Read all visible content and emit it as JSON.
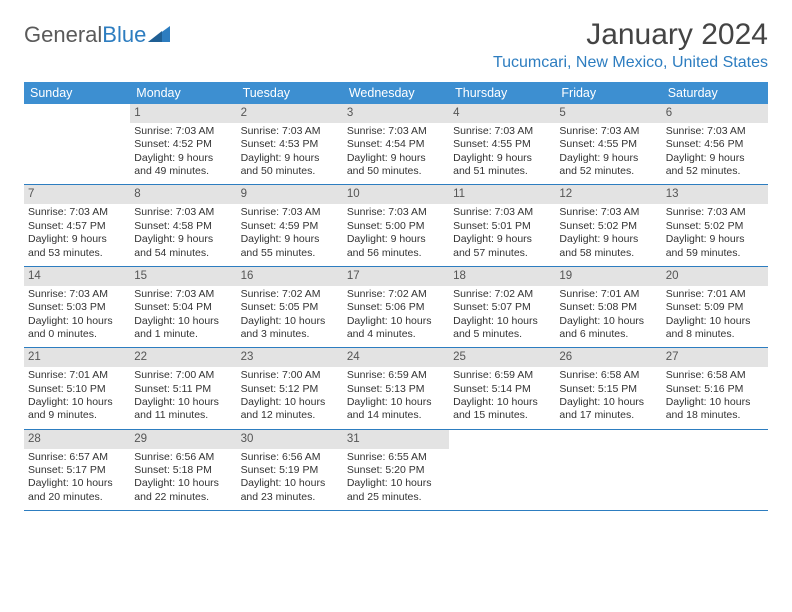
{
  "brand": {
    "part1": "General",
    "part2": "Blue"
  },
  "title": "January 2024",
  "location": "Tucumcari, New Mexico, United States",
  "colors": {
    "header_bg": "#3d8fd1",
    "header_text": "#ffffff",
    "rule": "#2d7dc0",
    "daynum_bg": "#e3e3e3",
    "body_text": "#333333",
    "accent": "#2d7dc0"
  },
  "dow": [
    "Sunday",
    "Monday",
    "Tuesday",
    "Wednesday",
    "Thursday",
    "Friday",
    "Saturday"
  ],
  "weeks": [
    [
      {
        "n": "",
        "sr": "",
        "ss": "",
        "dl": ""
      },
      {
        "n": "1",
        "sr": "Sunrise: 7:03 AM",
        "ss": "Sunset: 4:52 PM",
        "dl": "Daylight: 9 hours and 49 minutes."
      },
      {
        "n": "2",
        "sr": "Sunrise: 7:03 AM",
        "ss": "Sunset: 4:53 PM",
        "dl": "Daylight: 9 hours and 50 minutes."
      },
      {
        "n": "3",
        "sr": "Sunrise: 7:03 AM",
        "ss": "Sunset: 4:54 PM",
        "dl": "Daylight: 9 hours and 50 minutes."
      },
      {
        "n": "4",
        "sr": "Sunrise: 7:03 AM",
        "ss": "Sunset: 4:55 PM",
        "dl": "Daylight: 9 hours and 51 minutes."
      },
      {
        "n": "5",
        "sr": "Sunrise: 7:03 AM",
        "ss": "Sunset: 4:55 PM",
        "dl": "Daylight: 9 hours and 52 minutes."
      },
      {
        "n": "6",
        "sr": "Sunrise: 7:03 AM",
        "ss": "Sunset: 4:56 PM",
        "dl": "Daylight: 9 hours and 52 minutes."
      }
    ],
    [
      {
        "n": "7",
        "sr": "Sunrise: 7:03 AM",
        "ss": "Sunset: 4:57 PM",
        "dl": "Daylight: 9 hours and 53 minutes."
      },
      {
        "n": "8",
        "sr": "Sunrise: 7:03 AM",
        "ss": "Sunset: 4:58 PM",
        "dl": "Daylight: 9 hours and 54 minutes."
      },
      {
        "n": "9",
        "sr": "Sunrise: 7:03 AM",
        "ss": "Sunset: 4:59 PM",
        "dl": "Daylight: 9 hours and 55 minutes."
      },
      {
        "n": "10",
        "sr": "Sunrise: 7:03 AM",
        "ss": "Sunset: 5:00 PM",
        "dl": "Daylight: 9 hours and 56 minutes."
      },
      {
        "n": "11",
        "sr": "Sunrise: 7:03 AM",
        "ss": "Sunset: 5:01 PM",
        "dl": "Daylight: 9 hours and 57 minutes."
      },
      {
        "n": "12",
        "sr": "Sunrise: 7:03 AM",
        "ss": "Sunset: 5:02 PM",
        "dl": "Daylight: 9 hours and 58 minutes."
      },
      {
        "n": "13",
        "sr": "Sunrise: 7:03 AM",
        "ss": "Sunset: 5:02 PM",
        "dl": "Daylight: 9 hours and 59 minutes."
      }
    ],
    [
      {
        "n": "14",
        "sr": "Sunrise: 7:03 AM",
        "ss": "Sunset: 5:03 PM",
        "dl": "Daylight: 10 hours and 0 minutes."
      },
      {
        "n": "15",
        "sr": "Sunrise: 7:03 AM",
        "ss": "Sunset: 5:04 PM",
        "dl": "Daylight: 10 hours and 1 minute."
      },
      {
        "n": "16",
        "sr": "Sunrise: 7:02 AM",
        "ss": "Sunset: 5:05 PM",
        "dl": "Daylight: 10 hours and 3 minutes."
      },
      {
        "n": "17",
        "sr": "Sunrise: 7:02 AM",
        "ss": "Sunset: 5:06 PM",
        "dl": "Daylight: 10 hours and 4 minutes."
      },
      {
        "n": "18",
        "sr": "Sunrise: 7:02 AM",
        "ss": "Sunset: 5:07 PM",
        "dl": "Daylight: 10 hours and 5 minutes."
      },
      {
        "n": "19",
        "sr": "Sunrise: 7:01 AM",
        "ss": "Sunset: 5:08 PM",
        "dl": "Daylight: 10 hours and 6 minutes."
      },
      {
        "n": "20",
        "sr": "Sunrise: 7:01 AM",
        "ss": "Sunset: 5:09 PM",
        "dl": "Daylight: 10 hours and 8 minutes."
      }
    ],
    [
      {
        "n": "21",
        "sr": "Sunrise: 7:01 AM",
        "ss": "Sunset: 5:10 PM",
        "dl": "Daylight: 10 hours and 9 minutes."
      },
      {
        "n": "22",
        "sr": "Sunrise: 7:00 AM",
        "ss": "Sunset: 5:11 PM",
        "dl": "Daylight: 10 hours and 11 minutes."
      },
      {
        "n": "23",
        "sr": "Sunrise: 7:00 AM",
        "ss": "Sunset: 5:12 PM",
        "dl": "Daylight: 10 hours and 12 minutes."
      },
      {
        "n": "24",
        "sr": "Sunrise: 6:59 AM",
        "ss": "Sunset: 5:13 PM",
        "dl": "Daylight: 10 hours and 14 minutes."
      },
      {
        "n": "25",
        "sr": "Sunrise: 6:59 AM",
        "ss": "Sunset: 5:14 PM",
        "dl": "Daylight: 10 hours and 15 minutes."
      },
      {
        "n": "26",
        "sr": "Sunrise: 6:58 AM",
        "ss": "Sunset: 5:15 PM",
        "dl": "Daylight: 10 hours and 17 minutes."
      },
      {
        "n": "27",
        "sr": "Sunrise: 6:58 AM",
        "ss": "Sunset: 5:16 PM",
        "dl": "Daylight: 10 hours and 18 minutes."
      }
    ],
    [
      {
        "n": "28",
        "sr": "Sunrise: 6:57 AM",
        "ss": "Sunset: 5:17 PM",
        "dl": "Daylight: 10 hours and 20 minutes."
      },
      {
        "n": "29",
        "sr": "Sunrise: 6:56 AM",
        "ss": "Sunset: 5:18 PM",
        "dl": "Daylight: 10 hours and 22 minutes."
      },
      {
        "n": "30",
        "sr": "Sunrise: 6:56 AM",
        "ss": "Sunset: 5:19 PM",
        "dl": "Daylight: 10 hours and 23 minutes."
      },
      {
        "n": "31",
        "sr": "Sunrise: 6:55 AM",
        "ss": "Sunset: 5:20 PM",
        "dl": "Daylight: 10 hours and 25 minutes."
      },
      {
        "n": "",
        "sr": "",
        "ss": "",
        "dl": ""
      },
      {
        "n": "",
        "sr": "",
        "ss": "",
        "dl": ""
      },
      {
        "n": "",
        "sr": "",
        "ss": "",
        "dl": ""
      }
    ]
  ]
}
